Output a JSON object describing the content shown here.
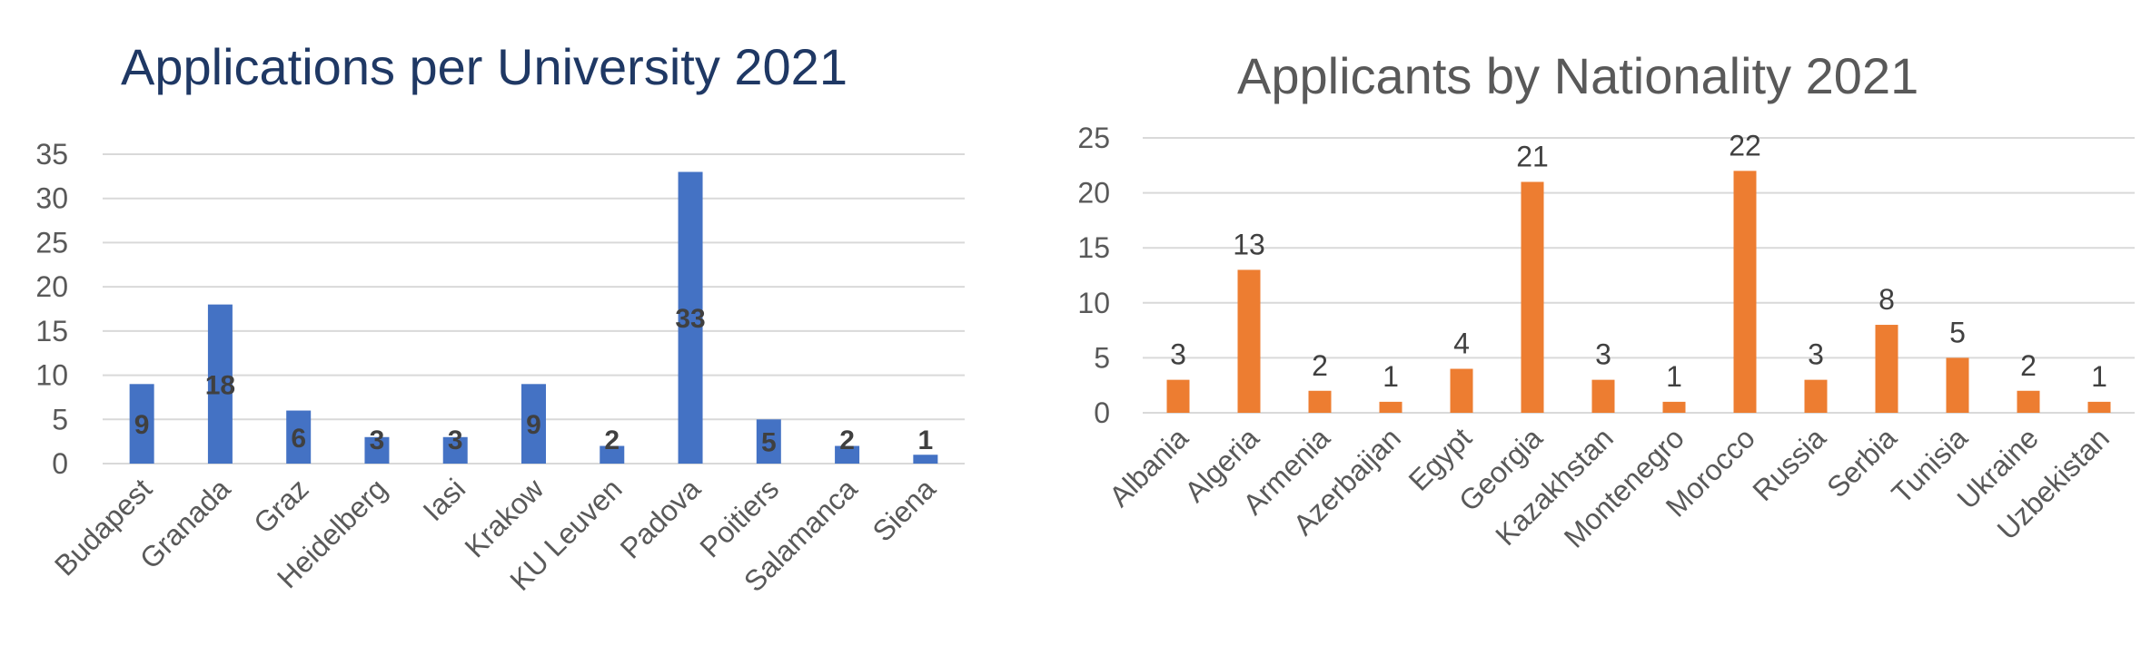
{
  "chart_data": [
    {
      "type": "bar",
      "title": "Applications per University 2021",
      "categories": [
        "Budapest",
        "Granada",
        "Graz",
        "Heidelberg",
        "Iasi",
        "Krakow",
        "KU Leuven",
        "Padova",
        "Poitiers",
        "Salamanca",
        "Siena"
      ],
      "values": [
        9,
        18,
        6,
        3,
        3,
        9,
        2,
        33,
        5,
        2,
        1
      ],
      "yticks": [
        "0",
        "5",
        "10",
        "15",
        "20",
        "25",
        "30",
        "35"
      ],
      "ylim": [
        0,
        35
      ],
      "grid": true,
      "legend": "none",
      "colors": {
        "bar": "#4472c4",
        "title": "#1f3864"
      }
    },
    {
      "type": "bar",
      "title": "Applicants by Nationality 2021",
      "categories": [
        "Albania",
        "Algeria",
        "Armenia",
        "Azerbaijan",
        "Egypt",
        "Georgia",
        "Kazakhstan",
        "Montenegro",
        "Morocco",
        "Russia",
        "Serbia",
        "Tunisia",
        "Ukraine",
        "Uzbekistan"
      ],
      "values": [
        3,
        13,
        2,
        1,
        4,
        21,
        3,
        1,
        22,
        3,
        8,
        5,
        2,
        1
      ],
      "yticks": [
        "0",
        "5",
        "10",
        "15",
        "20",
        "25"
      ],
      "ylim": [
        0,
        25
      ],
      "grid": true,
      "legend": "none",
      "colors": {
        "bar": "#ed7d31",
        "title": "#595959"
      }
    }
  ]
}
